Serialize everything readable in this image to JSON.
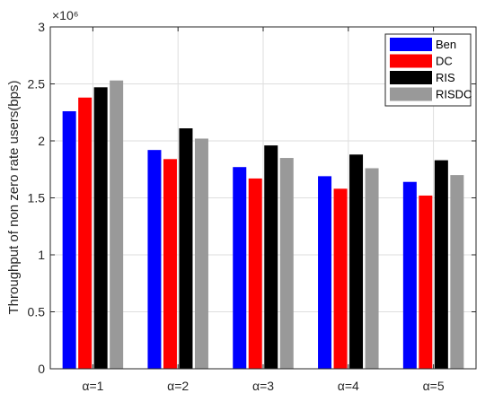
{
  "chart_data": {
    "type": "bar",
    "categories": [
      "α=1",
      "α=2",
      "α=3",
      "α=4",
      "α=5"
    ],
    "series": [
      {
        "name": "Ben",
        "color": "#0000FF",
        "values": [
          2.26,
          1.92,
          1.77,
          1.69,
          1.64
        ]
      },
      {
        "name": "DC",
        "color": "#FF0000",
        "values": [
          2.38,
          1.84,
          1.67,
          1.58,
          1.52
        ]
      },
      {
        "name": "RIS",
        "color": "#000000",
        "values": [
          2.47,
          2.11,
          1.96,
          1.88,
          1.83
        ]
      },
      {
        "name": "RISDC",
        "color": "#999999",
        "values": [
          2.53,
          2.02,
          1.85,
          1.76,
          1.7
        ]
      }
    ],
    "ylabel": "Throughput of non zero rate users(bps)",
    "xlabel": "",
    "title": "",
    "ylim": [
      0,
      3
    ],
    "yticks": [
      "0",
      "0.5",
      "1",
      "1.5",
      "2",
      "2.5",
      "3"
    ],
    "y_exponent": "×10⁶",
    "legend_position": "top-right",
    "grid": true
  }
}
